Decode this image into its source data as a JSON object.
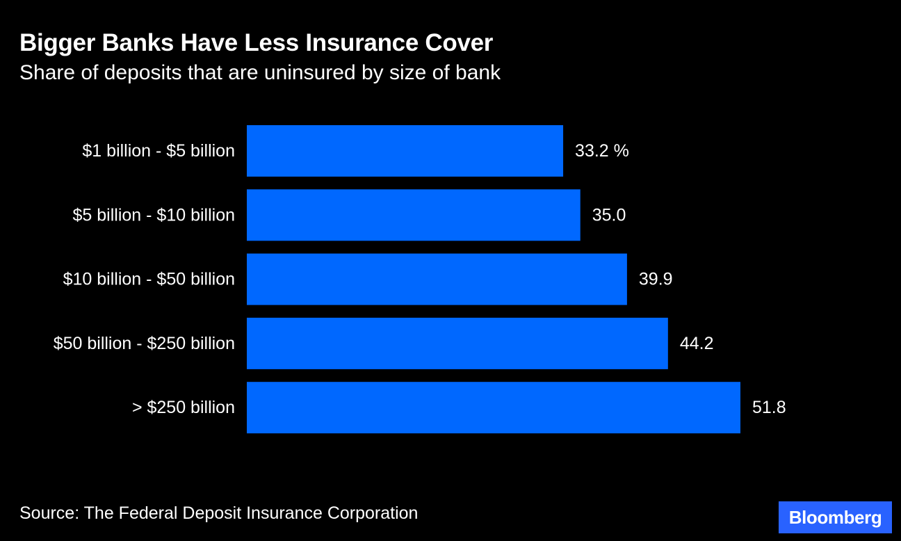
{
  "header": {
    "title": "Bigger Banks Have Less Insurance Cover",
    "subtitle": "Share of deposits that are uninsured by size of bank"
  },
  "footer": {
    "source": "Source: The Federal Deposit Insurance Corporation",
    "logo_text": "Bloomberg"
  },
  "colors": {
    "background": "#000000",
    "bar": "#0068ff",
    "text": "#ffffff",
    "logo_bg": "#2962ff"
  },
  "chart_data": {
    "type": "bar",
    "orientation": "horizontal",
    "title": "Bigger Banks Have Less Insurance Cover",
    "subtitle": "Share of deposits that are uninsured by size of bank",
    "categories": [
      "$1 billion - $5 billion",
      "$5 billion - $10 billion",
      "$10 billion - $50 billion",
      "$50 billion - $250 billion",
      "> $250 billion"
    ],
    "values": [
      33.2,
      35.0,
      39.9,
      44.2,
      51.8
    ],
    "value_labels": [
      "33.2 %",
      "35.0",
      "39.9",
      "44.2",
      "51.8"
    ],
    "unit": "%",
    "xlim": [
      0,
      51.8
    ],
    "grid": false,
    "legend": "none"
  }
}
